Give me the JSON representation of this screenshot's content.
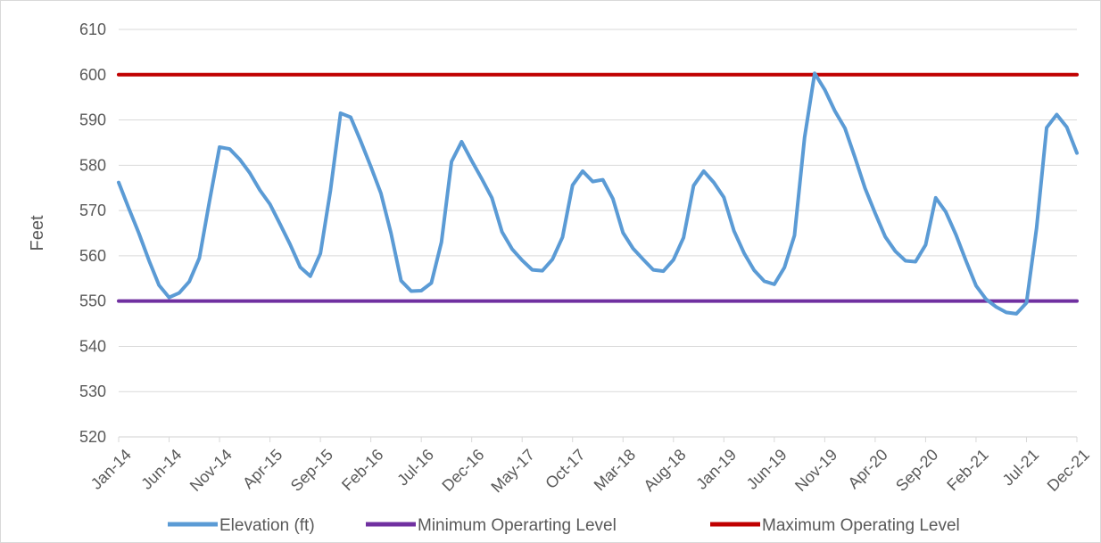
{
  "chart_data": {
    "type": "line",
    "title": "",
    "xlabel": "",
    "ylabel": "Feet",
    "ylim": [
      520,
      610
    ],
    "yticks": [
      520,
      530,
      540,
      550,
      560,
      570,
      580,
      590,
      600,
      610
    ],
    "grid": "horizontal",
    "legend_position": "bottom",
    "x": [
      "Jan-14",
      "Feb-14",
      "Mar-14",
      "Apr-14",
      "May-14",
      "Jun-14",
      "Jul-14",
      "Aug-14",
      "Sep-14",
      "Oct-14",
      "Nov-14",
      "Dec-14",
      "Jan-15",
      "Feb-15",
      "Mar-15",
      "Apr-15",
      "May-15",
      "Jun-15",
      "Jul-15",
      "Aug-15",
      "Sep-15",
      "Oct-15",
      "Nov-15",
      "Dec-15",
      "Jan-16",
      "Feb-16",
      "Mar-16",
      "Apr-16",
      "May-16",
      "Jun-16",
      "Jul-16",
      "Aug-16",
      "Sep-16",
      "Oct-16",
      "Nov-16",
      "Dec-16",
      "Jan-17",
      "Feb-17",
      "Mar-17",
      "Apr-17",
      "May-17",
      "Jun-17",
      "Jul-17",
      "Aug-17",
      "Sep-17",
      "Oct-17",
      "Nov-17",
      "Dec-17",
      "Jan-18",
      "Feb-18",
      "Mar-18",
      "Apr-18",
      "May-18",
      "Jun-18",
      "Jul-18",
      "Aug-18",
      "Sep-18",
      "Oct-18",
      "Nov-18",
      "Dec-18",
      "Jan-19",
      "Feb-19",
      "Mar-19",
      "Apr-19",
      "May-19",
      "Jun-19",
      "Jul-19",
      "Aug-19",
      "Sep-19",
      "Oct-19",
      "Nov-19",
      "Dec-19",
      "Jan-20",
      "Feb-20",
      "Mar-20",
      "Apr-20",
      "May-20",
      "Jun-20",
      "Jul-20",
      "Aug-20",
      "Sep-20",
      "Oct-20",
      "Nov-20",
      "Dec-20",
      "Jan-21",
      "Feb-21",
      "Mar-21",
      "Apr-21",
      "May-21",
      "Jun-21",
      "Jul-21",
      "Aug-21",
      "Sep-21",
      "Oct-21",
      "Nov-21",
      "Dec-21"
    ],
    "xtick_labels": [
      "Jan-14",
      "Jun-14",
      "Nov-14",
      "Apr-15",
      "Sep-15",
      "Feb-16",
      "Jul-16",
      "Dec-16",
      "May-17",
      "Oct-17",
      "Mar-18",
      "Aug-18",
      "Jan-19",
      "Jun-19",
      "Nov-19",
      "Apr-20",
      "Sep-20",
      "Feb-21",
      "Jul-21",
      "Dec-21"
    ],
    "series": [
      {
        "name": "Elevation (ft)",
        "color": "#5b9bd5",
        "values": [
          576.2,
          570.5,
          565.0,
          559.0,
          553.5,
          550.8,
          551.8,
          554.3,
          559.5,
          572.0,
          584.0,
          583.6,
          581.3,
          578.3,
          574.5,
          571.4,
          567.0,
          562.5,
          557.5,
          555.5,
          560.5,
          574.5,
          591.5,
          590.6,
          585.3,
          579.7,
          573.8,
          565.0,
          554.5,
          552.2,
          552.3,
          554.0,
          563.0,
          580.8,
          585.2,
          581.0,
          577.0,
          572.8,
          565.3,
          561.5,
          559.0,
          556.9,
          556.7,
          559.2,
          564.1,
          575.6,
          578.7,
          576.4,
          576.8,
          572.6,
          565.1,
          561.6,
          559.2,
          556.9,
          556.6,
          559.1,
          564.0,
          575.5,
          578.7,
          576.2,
          572.9,
          565.5,
          560.6,
          556.8,
          554.4,
          553.7,
          557.4,
          564.5,
          586.1,
          600.3,
          596.7,
          592.0,
          588.2,
          581.7,
          574.9,
          569.4,
          564.2,
          561.0,
          558.9,
          558.7,
          562.4,
          572.8,
          569.7,
          564.7,
          558.9,
          553.4,
          550.4,
          548.7,
          547.5,
          547.2,
          549.6,
          566.1,
          588.3,
          591.2,
          588.4,
          582.7
        ]
      },
      {
        "name": "Minimum Operarting Level",
        "color": "#7030a0",
        "constant": 550
      },
      {
        "name": "Maximum Operating Level",
        "color": "#c00000",
        "constant": 600
      }
    ]
  }
}
